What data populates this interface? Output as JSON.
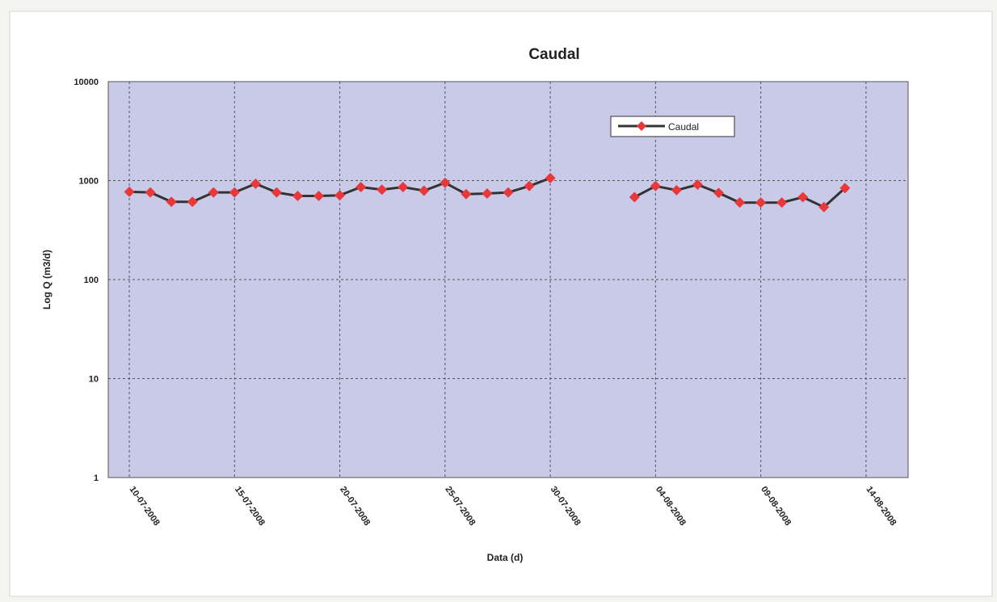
{
  "chart_data": {
    "type": "line",
    "title": "Caudal",
    "xlabel": "Data (d)",
    "ylabel": "Log Q (m3/d)",
    "y_scale": "log",
    "ylim": [
      1,
      10000
    ],
    "y_ticks": [
      "1",
      "10",
      "100",
      "1000",
      "10000"
    ],
    "x_ticks": [
      "10-07-2008",
      "15-07-2008",
      "20-07-2008",
      "25-07-2008",
      "30-07-2008",
      "04-08-2008",
      "09-08-2008",
      "14-08-2008"
    ],
    "xlim": [
      "2008-07-10",
      "2008-08-14"
    ],
    "grid": true,
    "legend": "top-right",
    "series": [
      {
        "name": "Caudal",
        "color": "#e8383a",
        "line_color": "#333333",
        "marker": "diamond",
        "x": [
          "2008-07-10",
          "2008-07-11",
          "2008-07-12",
          "2008-07-13",
          "2008-07-14",
          "2008-07-15",
          "2008-07-16",
          "2008-07-17",
          "2008-07-18",
          "2008-07-19",
          "2008-07-20",
          "2008-07-21",
          "2008-07-22",
          "2008-07-23",
          "2008-07-24",
          "2008-07-25",
          "2008-07-26",
          "2008-07-27",
          "2008-07-28",
          "2008-07-29",
          "2008-07-30",
          "2008-07-31",
          "2008-08-01",
          "2008-08-02",
          "2008-08-03",
          "2008-08-04",
          "2008-08-05",
          "2008-08-06",
          "2008-08-07",
          "2008-08-08",
          "2008-08-09",
          "2008-08-10",
          "2008-08-11",
          "2008-08-12",
          "2008-08-13"
        ],
        "values": [
          770,
          760,
          610,
          610,
          760,
          760,
          930,
          760,
          700,
          700,
          710,
          860,
          810,
          860,
          790,
          950,
          730,
          740,
          760,
          880,
          1060,
          null,
          null,
          null,
          680,
          880,
          800,
          910,
          750,
          600,
          600,
          600,
          680,
          540,
          840
        ]
      }
    ]
  },
  "colors": {
    "plot_background": "#c9c9e8",
    "grid": "#555555",
    "page_background": "#f4f4f1"
  }
}
